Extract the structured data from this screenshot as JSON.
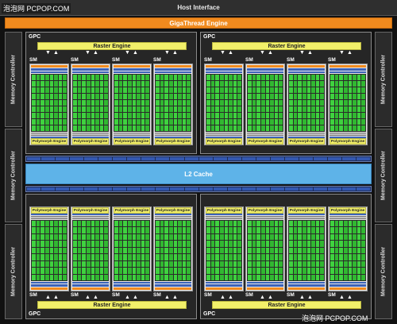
{
  "watermark_top": "泡泡网 PCPOP.COM",
  "watermark_bottom": "泡泡网 PCPOP.COM",
  "host_interface": "Host Interface",
  "gigathread_engine": "GigaThread Engine",
  "memory_controller": "Memory Controller",
  "l2_cache": "L2 Cache",
  "gpc": {
    "label": "GPC",
    "raster_engine": "Raster Engine",
    "sm_label": "SM",
    "polymorph_engine": "Polymorph Engine"
  },
  "colors": {
    "host_bar": "#2f2f2f",
    "gigathread": "#f08a1e",
    "raster_engine": "#f2f06a",
    "cuda_core": "#3fd23f",
    "l2_cache": "#5eb3e8",
    "interconnect": "#3358b0"
  }
}
